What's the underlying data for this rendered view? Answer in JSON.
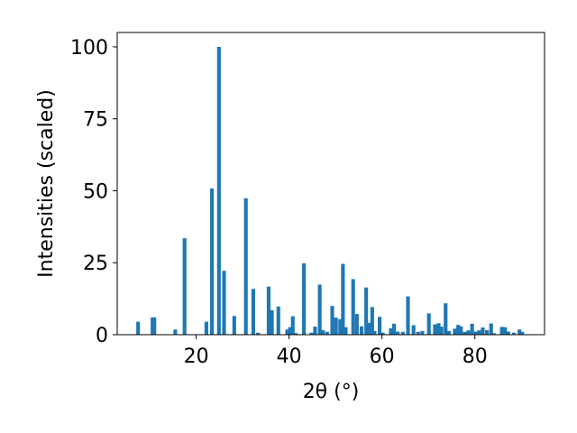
{
  "chart_data": {
    "type": "bar",
    "title": "",
    "xlabel": "2θ (°)",
    "ylabel": "Intensities (scaled)",
    "xlim": [
      3.0,
      95.0
    ],
    "ylim": [
      0,
      105
    ],
    "xticks": [
      20,
      40,
      60,
      80
    ],
    "yticks": [
      0,
      25,
      50,
      75,
      100
    ],
    "grid": false,
    "color": "#1f77b4",
    "bar_width": 0.8,
    "x": [
      7.5,
      10.6,
      11.0,
      15.5,
      17.5,
      22.2,
      23.4,
      24.9,
      26.0,
      28.2,
      30.7,
      32.3,
      33.3,
      35.6,
      36.3,
      37.7,
      39.6,
      40.2,
      40.8,
      41.4,
      43.2,
      44.8,
      45.6,
      46.6,
      47.3,
      48.2,
      49.3,
      50.1,
      51.0,
      51.6,
      52.2,
      53.8,
      54.6,
      55.6,
      56.6,
      57.2,
      57.9,
      58.4,
      59.5,
      60.2,
      61.9,
      62.6,
      63.4,
      64.5,
      65.6,
      66.8,
      67.8,
      68.7,
      70.1,
      71.4,
      72.2,
      72.8,
      73.7,
      74.4,
      75.7,
      76.4,
      77.0,
      77.8,
      78.6,
      79.4,
      80.2,
      80.9,
      81.7,
      82.6,
      83.5,
      84.1,
      85.8,
      86.5,
      87.2,
      88.4,
      89.6,
      90.2
    ],
    "values": [
      4.5,
      6.0,
      6.0,
      1.8,
      33.5,
      4.5,
      50.8,
      100.0,
      22.2,
      6.5,
      47.4,
      15.9,
      0.7,
      16.7,
      8.5,
      9.8,
      1.8,
      2.6,
      6.4,
      0.6,
      24.8,
      0.7,
      2.8,
      17.4,
      1.6,
      1.0,
      10.0,
      5.9,
      5.4,
      24.6,
      2.6,
      19.3,
      7.2,
      2.9,
      16.4,
      4.1,
      9.6,
      1.3,
      6.2,
      0.7,
      2.2,
      3.8,
      1.1,
      1.0,
      13.3,
      3.3,
      1.0,
      1.3,
      7.4,
      3.6,
      4.0,
      2.8,
      10.9,
      1.3,
      2.1,
      3.4,
      2.9,
      1.0,
      1.5,
      3.8,
      1.1,
      1.5,
      2.5,
      1.6,
      3.9,
      0.5,
      2.7,
      2.6,
      1.1,
      0.7,
      1.8,
      1.0
    ]
  }
}
